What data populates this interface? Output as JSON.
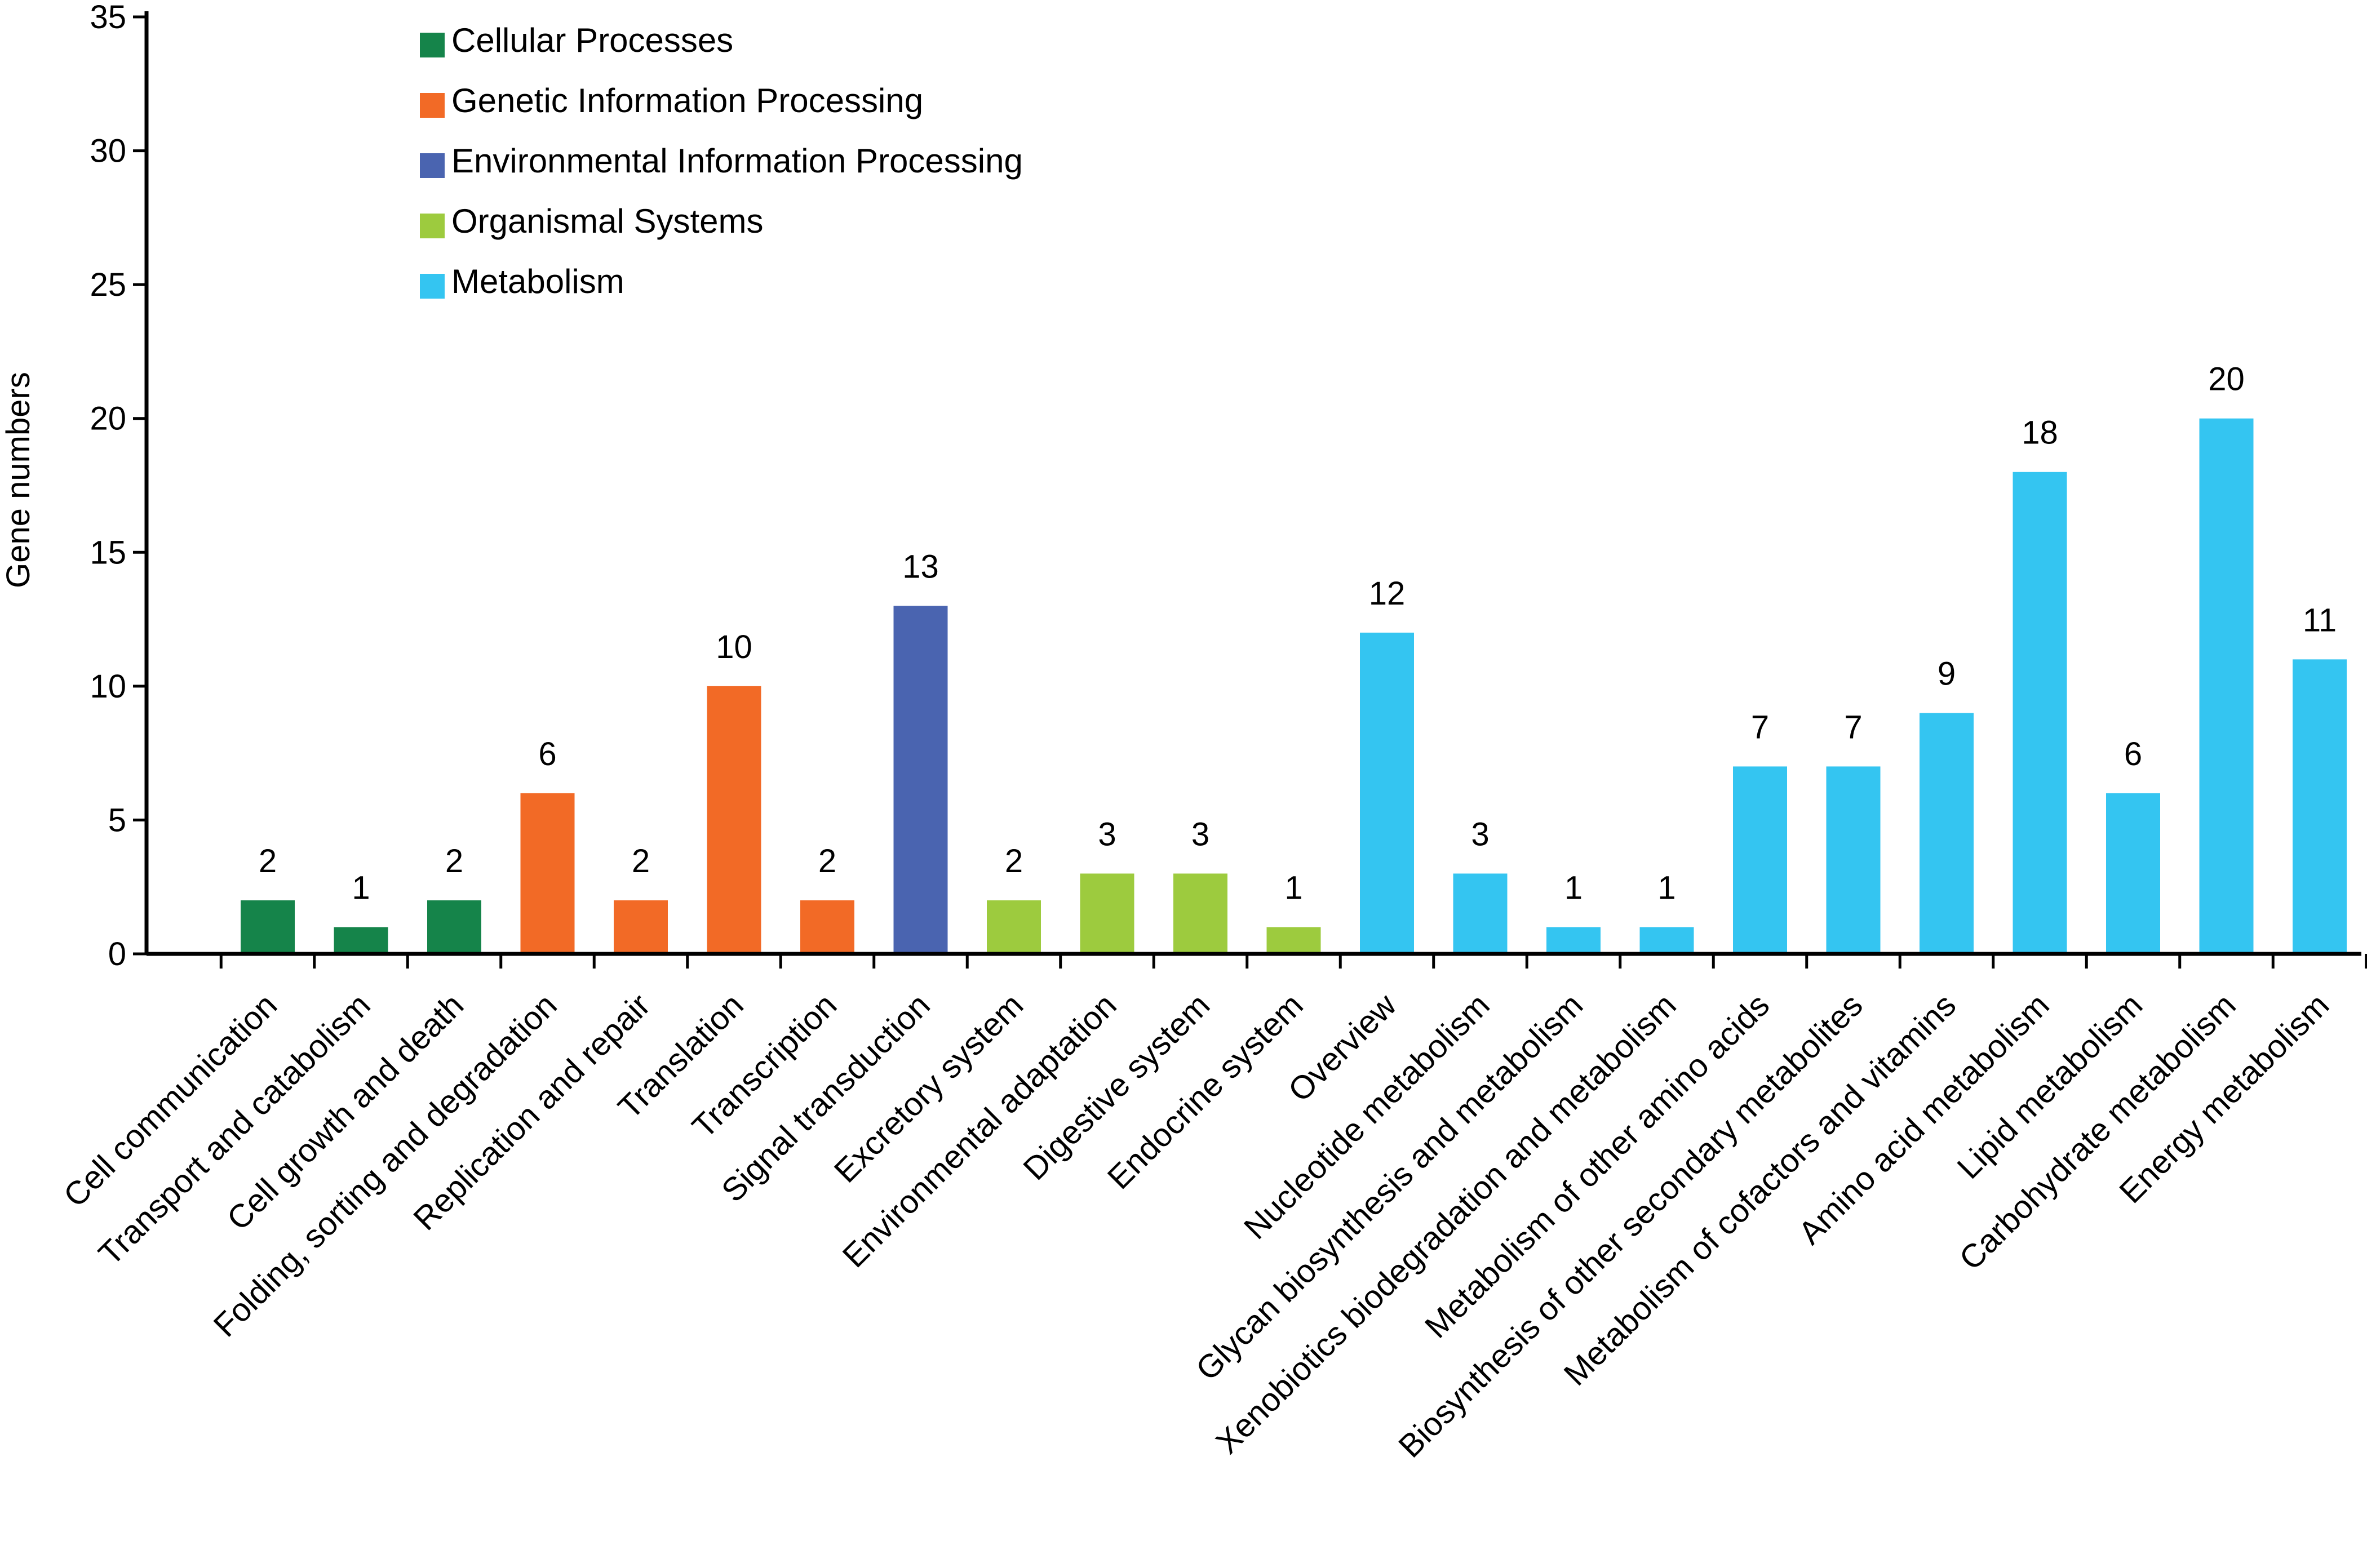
{
  "chart_data": {
    "type": "bar",
    "title": "",
    "xlabel": "",
    "ylabel": "Gene numbers",
    "ylim": [
      0,
      35
    ],
    "yticks": [
      0,
      5,
      10,
      15,
      20,
      25,
      30,
      35
    ],
    "grid": false,
    "legend_position": "top-left",
    "groups": [
      {
        "name": "Cellular Processes",
        "color": "#15844a"
      },
      {
        "name": "Genetic Information Processing",
        "color": "#f26a26"
      },
      {
        "name": "Environmental Information Processing",
        "color": "#4a64b0"
      },
      {
        "name": "Organismal Systems",
        "color": "#9dcb3e"
      },
      {
        "name": "Metabolism",
        "color": "#34c5f1"
      }
    ],
    "categories": [
      "Cell communication",
      "Transport and catabolism",
      "Cell growth and death",
      "Folding, sorting and degradation",
      "Replication and repair",
      "Translation",
      "Transcription",
      "Signal transduction",
      "Excretory system",
      "Environmental adaptation",
      "Digestive system",
      "Endocrine system",
      "Overview",
      "Nucleotide metabolism",
      "Glycan biosynthesis and metabolism",
      "Xenobiotics biodegradation and metabolism",
      "Metabolism of other amino acids",
      "Biosynthesis of other secondary metabolites",
      "Metabolism of cofactors and vitamins",
      "Amino acid metabolism",
      "Lipid metabolism",
      "Carbohydrate metabolism",
      "Energy metabolism"
    ],
    "values": [
      2,
      1,
      2,
      6,
      2,
      10,
      2,
      13,
      2,
      3,
      3,
      1,
      12,
      3,
      1,
      1,
      7,
      7,
      9,
      18,
      6,
      20,
      11
    ],
    "data_labels": [
      "2",
      "1",
      "2",
      "6",
      "2",
      "10",
      "2",
      "13",
      "2",
      "3",
      "3",
      "1",
      "12",
      "3",
      "1",
      "1",
      "7",
      "7",
      "9",
      "18",
      "6",
      "20",
      "11"
    ],
    "bar_groups": [
      "Cellular Processes",
      "Cellular Processes",
      "Cellular Processes",
      "Genetic Information Processing",
      "Genetic Information Processing",
      "Genetic Information Processing",
      "Genetic Information Processing",
      "Environmental Information Processing",
      "Organismal Systems",
      "Organismal Systems",
      "Organismal Systems",
      "Organismal Systems",
      "Metabolism",
      "Metabolism",
      "Metabolism",
      "Metabolism",
      "Metabolism",
      "Metabolism",
      "Metabolism",
      "Metabolism",
      "Metabolism",
      "Metabolism",
      "Metabolism"
    ]
  }
}
